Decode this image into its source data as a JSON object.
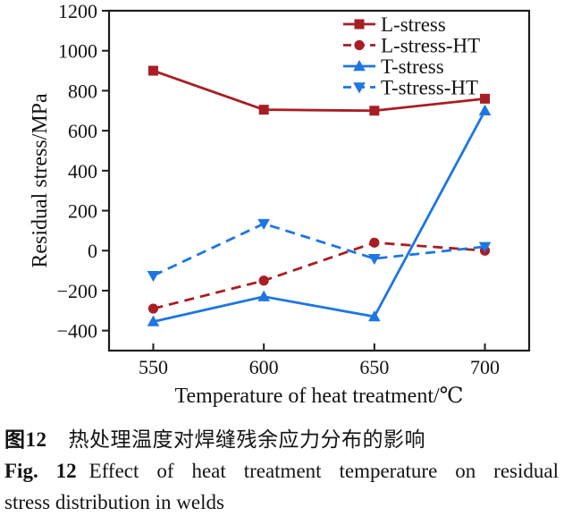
{
  "figure": {
    "caption_cn_label": "图12",
    "caption_cn_text": "热处理温度对焊缝残余应力分布的影响",
    "caption_en_label": "Fig. 12",
    "caption_en_line1": "Effect of heat treatment temperature on residual",
    "caption_en_line2": "stress distribution in welds"
  },
  "chart_data": {
    "type": "line",
    "title": "",
    "xlabel": "Temperature of heat treatment/℃",
    "ylabel": "Residual stress/MPa",
    "x": [
      550,
      600,
      650,
      700
    ],
    "xlim": [
      530,
      720
    ],
    "ylim": [
      -500,
      1200
    ],
    "xticks": [
      550,
      600,
      650,
      700
    ],
    "yticks": [
      -400,
      -200,
      0,
      200,
      400,
      600,
      800,
      1000,
      1200
    ],
    "grid": false,
    "legend_position": "top-right",
    "axis_color": "#1c1c1c",
    "series": [
      {
        "name": "L-stress",
        "color": "#a81e24",
        "line": "solid",
        "marker": "square",
        "values": [
          900,
          705,
          700,
          760
        ]
      },
      {
        "name": "L-stress-HT",
        "color": "#a81e24",
        "line": "dashed",
        "marker": "circle",
        "values": [
          -290,
          -150,
          40,
          0
        ]
      },
      {
        "name": "T-stress",
        "color": "#1d76e2",
        "line": "solid",
        "marker": "triangle-up",
        "values": [
          -355,
          -230,
          -330,
          700
        ]
      },
      {
        "name": "T-stress-HT",
        "color": "#1d76e2",
        "line": "dashed",
        "marker": "triangle-down",
        "values": [
          -125,
          135,
          -40,
          20
        ]
      }
    ]
  }
}
